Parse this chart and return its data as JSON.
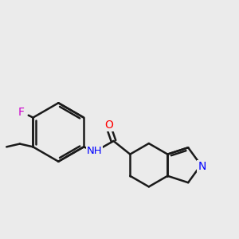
{
  "background_color": "#ebebeb",
  "bond_color": "#1a1a1a",
  "bond_width": 1.8,
  "atom_colors": {
    "O": "#ff0000",
    "N": "#0000ff",
    "F": "#cc00cc",
    "NH": "#0000ff",
    "C": "#1a1a1a"
  },
  "font_size": 10
}
